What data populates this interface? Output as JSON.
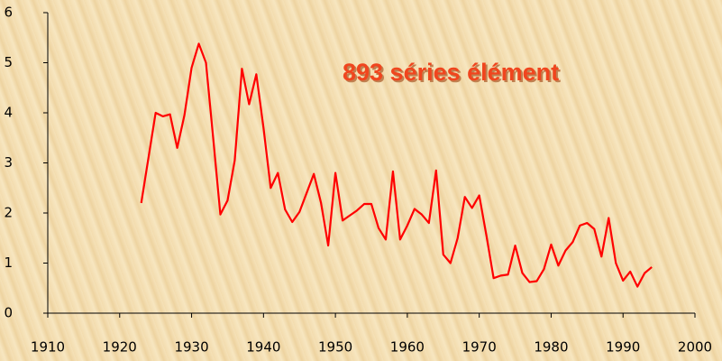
{
  "chart_data": {
    "type": "line",
    "annotation": "893 séries élément",
    "x": [
      1923,
      1924,
      1925,
      1926,
      1927,
      1928,
      1929,
      1930,
      1931,
      1932,
      1933,
      1934,
      1935,
      1936,
      1937,
      1938,
      1939,
      1940,
      1941,
      1942,
      1943,
      1944,
      1945,
      1946,
      1947,
      1948,
      1949,
      1950,
      1951,
      1952,
      1953,
      1954,
      1955,
      1956,
      1957,
      1958,
      1959,
      1960,
      1961,
      1962,
      1963,
      1964,
      1965,
      1966,
      1967,
      1968,
      1969,
      1970,
      1971,
      1972,
      1973,
      1974,
      1975,
      1976,
      1977,
      1978,
      1979,
      1980,
      1981,
      1982,
      1983,
      1984,
      1985,
      1986,
      1987,
      1988,
      1989,
      1990,
      1991,
      1992,
      1993,
      1994
    ],
    "series": [
      {
        "color": "#ff0000",
        "values": [
          2.2,
          3.1,
          4.0,
          3.93,
          3.97,
          3.3,
          3.95,
          4.9,
          5.38,
          5.0,
          3.5,
          1.97,
          2.25,
          3.05,
          4.88,
          4.17,
          4.77,
          3.7,
          2.5,
          2.8,
          2.07,
          1.82,
          2.02,
          2.4,
          2.78,
          2.2,
          1.35,
          2.8,
          1.85,
          1.95,
          2.05,
          2.18,
          2.18,
          1.7,
          1.47,
          2.83,
          1.47,
          1.75,
          2.08,
          1.97,
          1.8,
          2.85,
          1.17,
          1.0,
          1.5,
          2.32,
          2.1,
          2.35,
          1.55,
          0.7,
          0.75,
          0.77,
          1.35,
          0.8,
          0.62,
          0.64,
          0.88,
          1.37,
          0.95,
          1.25,
          1.42,
          1.75,
          1.8,
          1.68,
          1.13,
          1.9,
          1.0,
          0.65,
          0.83,
          0.53,
          0.8,
          0.92
        ]
      }
    ],
    "xlim": [
      1910,
      2000
    ],
    "xticks": [
      1910,
      1920,
      1930,
      1940,
      1950,
      1960,
      1970,
      1980,
      1990,
      2000
    ],
    "ylim": [
      0,
      6
    ],
    "yticks": [
      0,
      1,
      2,
      3,
      4,
      5,
      6
    ]
  }
}
